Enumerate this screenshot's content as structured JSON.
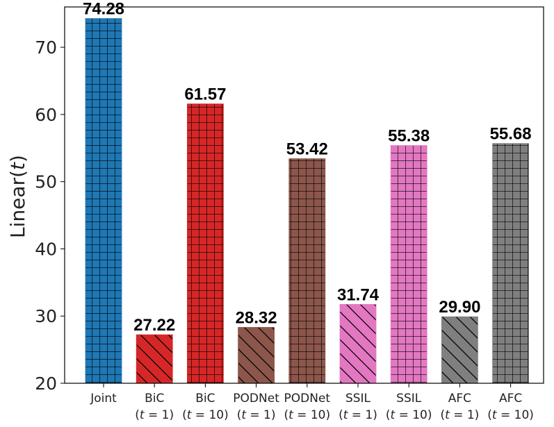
{
  "chart_data": {
    "type": "bar",
    "ylabel_prefix": "Linear(",
    "ylabel_var": "t",
    "ylabel_suffix": ")",
    "ylim": [
      20,
      76
    ],
    "yticks": [
      20,
      30,
      40,
      50,
      60,
      70
    ],
    "grid": false,
    "categories": [
      {
        "line1": "Joint",
        "line2": ""
      },
      {
        "line1": "BiC",
        "line2": "(t = 1)"
      },
      {
        "line1": "BiC",
        "line2": "(t = 10)"
      },
      {
        "line1": "PODNet",
        "line2": "(t = 1)"
      },
      {
        "line1": "PODNet",
        "line2": "(t = 10)"
      },
      {
        "line1": "SSIL",
        "line2": "(t = 1)"
      },
      {
        "line1": "SSIL",
        "line2": "(t = 10)"
      },
      {
        "line1": "AFC",
        "line2": "(t = 1)"
      },
      {
        "line1": "AFC",
        "line2": "(t = 10)"
      }
    ],
    "values": [
      74.28,
      27.22,
      61.57,
      28.32,
      53.42,
      31.74,
      55.38,
      29.9,
      55.68
    ],
    "value_labels": [
      "74.28",
      "27.22",
      "61.57",
      "28.32",
      "53.42",
      "31.74",
      "55.38",
      "29.90",
      "55.68"
    ],
    "colors": [
      "#1f77b4",
      "#d62728",
      "#d62728",
      "#8c564b",
      "#8c564b",
      "#e377c2",
      "#e377c2",
      "#7f7f7f",
      "#7f7f7f"
    ],
    "hatches": [
      "grid",
      "diagonal",
      "grid",
      "diagonal",
      "grid",
      "diagonal",
      "grid",
      "diagonal",
      "grid"
    ]
  }
}
